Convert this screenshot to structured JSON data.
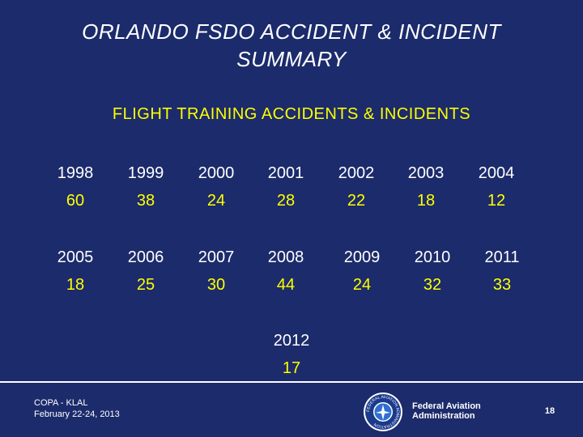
{
  "slide": {
    "title": "ORLANDO  FSDO  ACCIDENT  &  INCIDENT\nSUMMARY",
    "subtitle": "FLIGHT  TRAINING  ACCIDENTS  &  INCIDENTS",
    "yearly_counts": [
      {
        "year": "1998",
        "count": "60"
      },
      {
        "year": "1999",
        "count": "38"
      },
      {
        "year": "2000",
        "count": "24"
      },
      {
        "year": "2001",
        "count": "28"
      },
      {
        "year": "2002",
        "count": "22"
      },
      {
        "year": "2003",
        "count": "18"
      },
      {
        "year": "2004",
        "count": "12"
      },
      {
        "year": "2005",
        "count": "18"
      },
      {
        "year": "2006",
        "count": "25"
      },
      {
        "year": "2007",
        "count": "30"
      },
      {
        "year": "2008",
        "count": "44"
      },
      {
        "year": "2009",
        "count": "24"
      },
      {
        "year": "2010",
        "count": "32"
      },
      {
        "year": "2011",
        "count": "33"
      },
      {
        "year": "2012",
        "count": "17"
      }
    ]
  },
  "footer": {
    "event": "COPA - KLAL\nFebruary 22-24, 2013",
    "agency": "Federal Aviation\nAdministration",
    "page_number": "18",
    "seal_label": "FEDERAL AVIATION ADMINISTRATION"
  },
  "colors": {
    "background": "#1c2b6b",
    "title_text": "#ffffff",
    "highlight_text": "#ffff00"
  }
}
